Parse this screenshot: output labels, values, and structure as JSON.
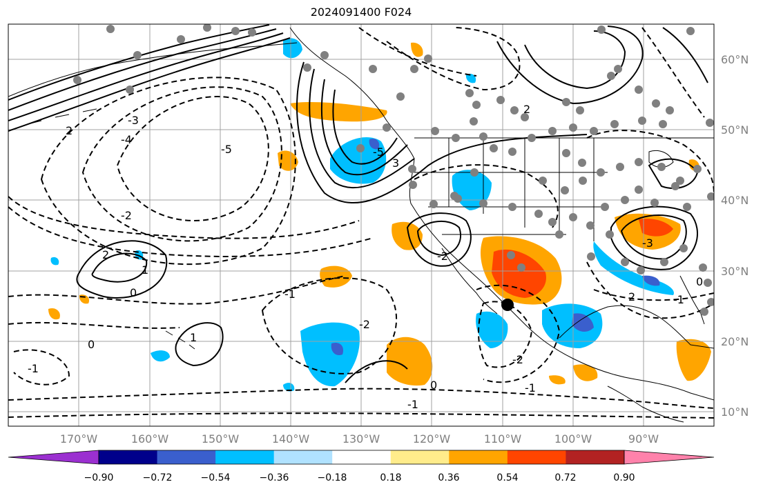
{
  "title": "2024091400 F024",
  "map": {
    "lon_labels": [
      "170°W",
      "160°W",
      "150°W",
      "140°W",
      "130°W",
      "120°W",
      "110°W",
      "100°W",
      "90°W"
    ],
    "lat_labels": [
      "60°N",
      "50°N",
      "40°N",
      "30°N",
      "20°N",
      "10°N"
    ],
    "contour_labels": [
      "2",
      "-4",
      "-5",
      "-3",
      "-2",
      "-1",
      "0",
      "1",
      "2",
      "0",
      "-1",
      "-2",
      "-5",
      "3",
      "2",
      "-3",
      "-1",
      "2",
      "-1",
      "0",
      "1",
      "-1",
      "-2",
      "0",
      "-2"
    ],
    "colors": {
      "land_outline": "#000000",
      "grid": "#a0a0a0",
      "station_dot": "#808080",
      "storm_marker": "#000000"
    }
  },
  "colorbar": {
    "tick_labels": [
      "−0.90",
      "−0.72",
      "−0.54",
      "−0.36",
      "−0.18",
      "0.18",
      "0.36",
      "0.54",
      "0.72",
      "0.90"
    ],
    "colors": [
      "#9b30d0",
      "#00008b",
      "#3a5fcd",
      "#00bfff",
      "#b0e2ff",
      "#ffffff",
      "#ffec8b",
      "#ffa500",
      "#ff4500",
      "#b22222",
      "#ff82ab"
    ]
  }
}
